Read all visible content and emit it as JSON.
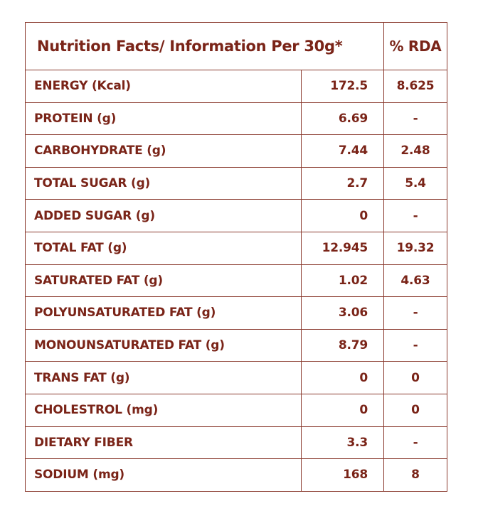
{
  "header": {
    "title": "Nutrition Facts/ Information Per 30g*",
    "rda_label": "% RDA"
  },
  "rows": [
    {
      "label": "ENERGY (Kcal)",
      "value": "172.5",
      "rda": "8.625"
    },
    {
      "label": "PROTEIN (g)",
      "value": "6.69",
      "rda": "-"
    },
    {
      "label": "CARBOHYDRATE (g)",
      "value": "7.44",
      "rda": "2.48"
    },
    {
      "label": "TOTAL SUGAR (g)",
      "value": "2.7",
      "rda": "5.4"
    },
    {
      "label": "ADDED SUGAR (g)",
      "value": "0",
      "rda": "-"
    },
    {
      "label": "TOTAL FAT (g)",
      "value": "12.945",
      "rda": "19.32"
    },
    {
      "label": "SATURATED FAT (g)",
      "value": "1.02",
      "rda": "4.63"
    },
    {
      "label": "POLYUNSATURATED FAT (g)",
      "value": "3.06",
      "rda": "-"
    },
    {
      "label": "MONOUNSATURATED FAT (g)",
      "value": "8.79",
      "rda": "-"
    },
    {
      "label": "TRANS FAT (g)",
      "value": "0",
      "rda": "0"
    },
    {
      "label": "CHOLESTROL (mg)",
      "value": "0",
      "rda": "0"
    },
    {
      "label": "DIETARY FIBER",
      "value": "3.3",
      "rda": "-"
    },
    {
      "label": "SODIUM (mg)",
      "value": "168",
      "rda": "8"
    }
  ],
  "colors": {
    "text": "#7a2418",
    "border": "#8a3a2e",
    "background": "#ffffff"
  }
}
